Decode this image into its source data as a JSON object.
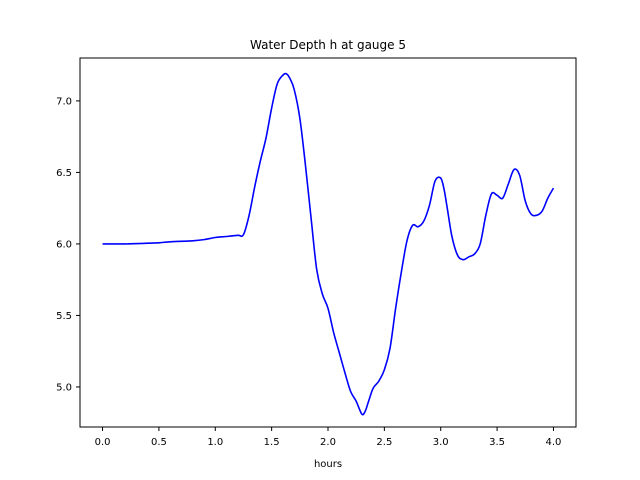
{
  "chart_data": {
    "type": "line",
    "title": "Water Depth h at gauge 5",
    "xlabel": "hours",
    "ylabel": "",
    "xlim": [
      -0.2,
      4.2
    ],
    "ylim": [
      4.72,
      7.3
    ],
    "xticks": [
      0.0,
      0.5,
      1.0,
      1.5,
      2.0,
      2.5,
      3.0,
      3.5,
      4.0
    ],
    "xtick_labels": [
      "0.0",
      "0.5",
      "1.0",
      "1.5",
      "2.0",
      "2.5",
      "3.0",
      "3.5",
      "4.0"
    ],
    "yticks": [
      5.0,
      5.5,
      6.0,
      6.5,
      7.0
    ],
    "ytick_labels": [
      "5.0",
      "5.5",
      "6.0",
      "6.5",
      "7.0"
    ],
    "grid": false,
    "series": [
      {
        "color": "#0000ff",
        "x": [
          0.0,
          0.2,
          0.4,
          0.5,
          0.6,
          0.8,
          0.9,
          1.0,
          1.1,
          1.2,
          1.25,
          1.3,
          1.35,
          1.4,
          1.45,
          1.5,
          1.55,
          1.6,
          1.63,
          1.66,
          1.7,
          1.75,
          1.8,
          1.85,
          1.9,
          1.95,
          2.0,
          2.05,
          2.1,
          2.15,
          2.2,
          2.25,
          2.3,
          2.33,
          2.36,
          2.4,
          2.45,
          2.5,
          2.55,
          2.6,
          2.65,
          2.7,
          2.75,
          2.8,
          2.85,
          2.9,
          2.95,
          3.0,
          3.03,
          3.06,
          3.1,
          3.15,
          3.2,
          3.25,
          3.3,
          3.35,
          3.4,
          3.45,
          3.5,
          3.55,
          3.6,
          3.65,
          3.7,
          3.75,
          3.8,
          3.85,
          3.9,
          3.95,
          4.0
        ],
        "y": [
          6.0,
          6.0,
          6.005,
          6.008,
          6.015,
          6.022,
          6.03,
          6.045,
          6.052,
          6.06,
          6.065,
          6.2,
          6.4,
          6.58,
          6.74,
          6.95,
          7.12,
          7.18,
          7.19,
          7.16,
          7.08,
          6.88,
          6.55,
          6.18,
          5.82,
          5.65,
          5.55,
          5.38,
          5.24,
          5.1,
          4.97,
          4.9,
          4.81,
          4.83,
          4.9,
          4.99,
          5.04,
          5.12,
          5.27,
          5.55,
          5.8,
          6.02,
          6.13,
          6.12,
          6.16,
          6.27,
          6.44,
          6.46,
          6.38,
          6.24,
          6.05,
          5.92,
          5.89,
          5.91,
          5.93,
          6.0,
          6.2,
          6.35,
          6.34,
          6.32,
          6.42,
          6.52,
          6.48,
          6.3,
          6.21,
          6.2,
          6.23,
          6.32,
          6.39
        ]
      }
    ]
  }
}
